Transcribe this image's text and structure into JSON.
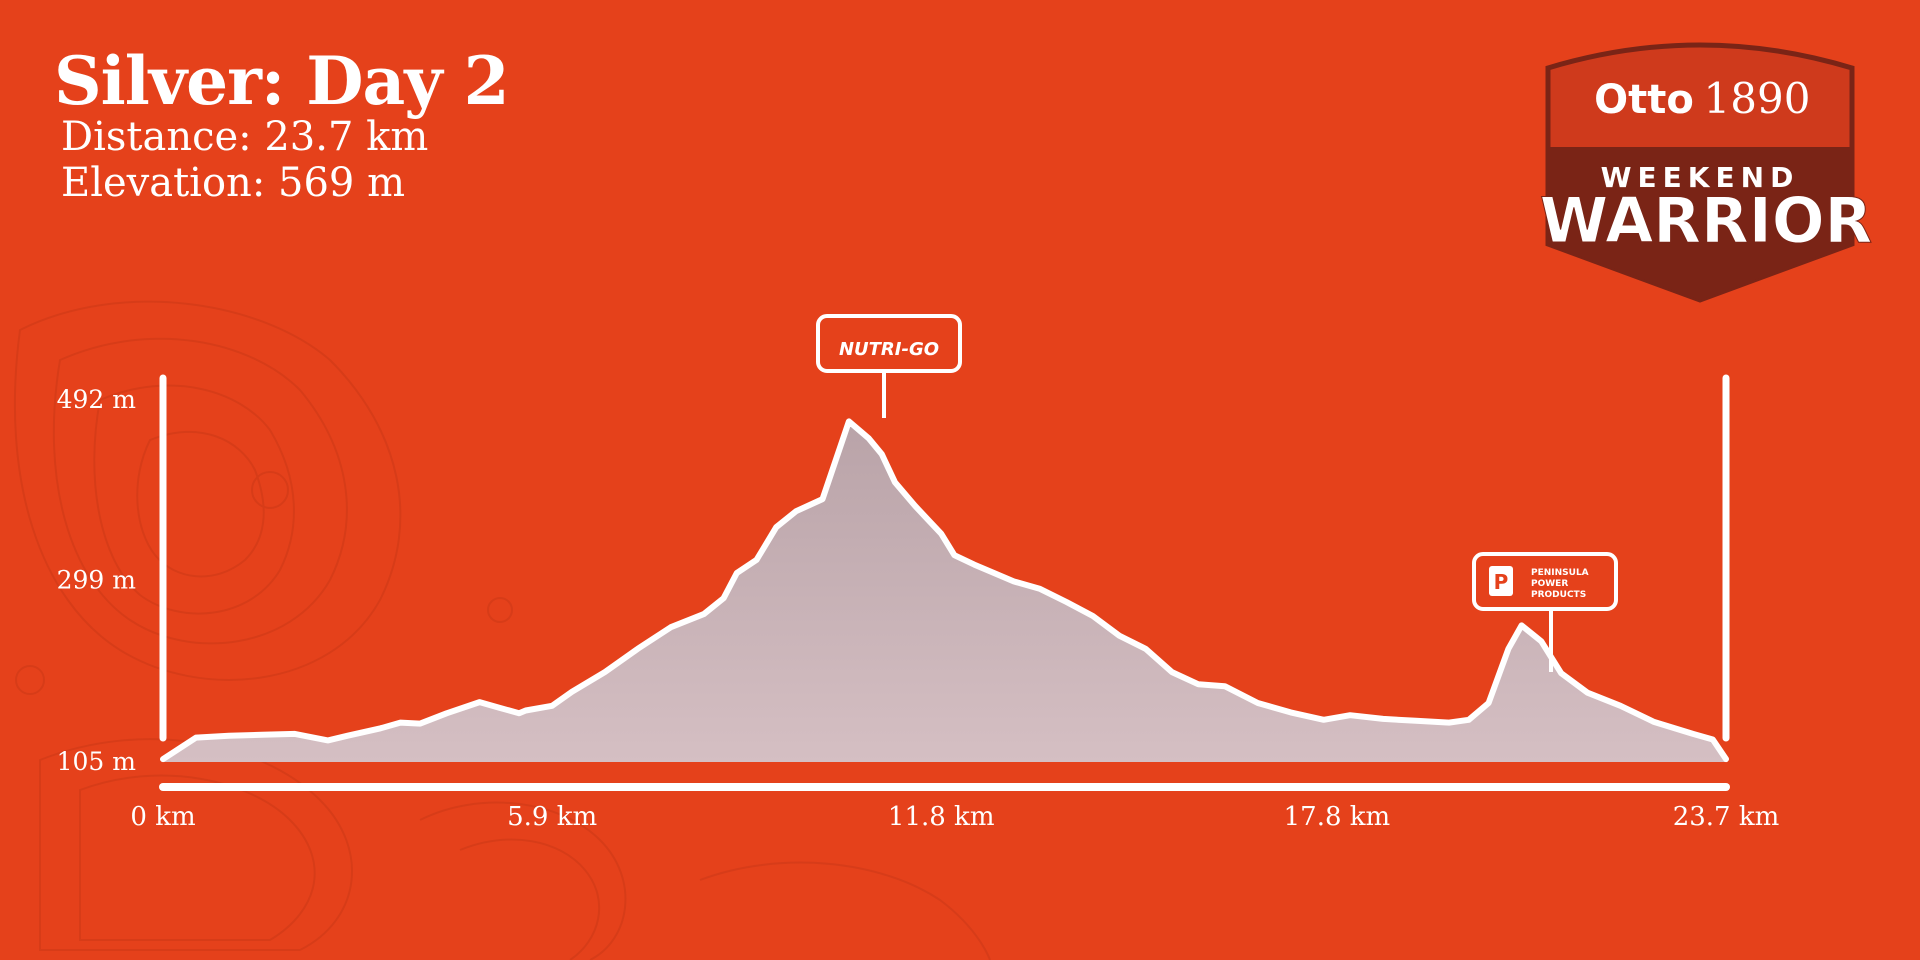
{
  "header": {
    "title": "Silver: Day 2",
    "distance": "Distance: 23.7 km",
    "elevation": "Elevation: 569 m"
  },
  "logo": {
    "brand_name": "Otto",
    "brand_year": "1890",
    "line1": "WEEKEND",
    "line2": "WARRIOR"
  },
  "sponsors": {
    "peak_sponsor": "NUTRI-GO",
    "peak2_sponsor_line1": "PENINSULA",
    "peak2_sponsor_line2": "POWER",
    "peak2_sponsor_line3": "PRODUCTS"
  },
  "colors": {
    "background": "#e5411b",
    "area_fill": "#c9b3b8",
    "line": "#ffffff",
    "logo_dark": "#7a2416",
    "logo_red": "#cf3a1c"
  },
  "chart_data": {
    "type": "area",
    "title": "",
    "xlabel": "",
    "ylabel": "",
    "x_ticks": [
      "0 km",
      "5.9 km",
      "11.8 km",
      "17.8 km",
      "23.7 km"
    ],
    "y_ticks": [
      "492 m",
      "299 m",
      "105 m"
    ],
    "x_tick_values": [
      0,
      5.9,
      11.8,
      17.8,
      23.7
    ],
    "y_tick_values": [
      492,
      299,
      105
    ],
    "xlim": [
      0,
      23.7
    ],
    "ylim": [
      105,
      492
    ],
    "grid": false,
    "series": [
      {
        "x": [
          0,
          0.5,
          1.0,
          1.5,
          2.0,
          2.5,
          2.8,
          3.3,
          3.6,
          3.9,
          4.3,
          4.8,
          5.1,
          5.4,
          5.5,
          5.9,
          6.2,
          6.7,
          7.2,
          7.7,
          8.2,
          8.5,
          8.7,
          9.0,
          9.3,
          9.6,
          10.0,
          10.4,
          10.7,
          10.9,
          11.1,
          11.4,
          11.6,
          11.8,
          12.0,
          12.3,
          12.6,
          12.9,
          13.3,
          13.7,
          14.1,
          14.5,
          14.9,
          15.3,
          15.7,
          16.1,
          16.6,
          17.1,
          17.6,
          18.0,
          18.5,
          19.0,
          19.5,
          19.8,
          20.1,
          20.4,
          20.6,
          20.9,
          21.2,
          21.6,
          22.1,
          22.6,
          23.2,
          23.5,
          23.7
        ],
        "y": [
          107,
          130,
          132,
          133,
          134,
          127,
          132,
          140,
          146,
          145,
          156,
          168,
          162,
          156,
          159,
          164,
          179,
          200,
          225,
          248,
          262,
          279,
          306,
          320,
          355,
          372,
          385,
          468,
          450,
          433,
          403,
          378,
          363,
          348,
          325,
          315,
          306,
          297,
          289,
          275,
          260,
          239,
          225,
          200,
          187,
          185,
          167,
          157,
          149,
          154,
          150,
          148,
          146,
          149,
          167,
          225,
          250,
          233,
          199,
          178,
          164,
          147,
          134,
          128,
          107
        ]
      }
    ]
  }
}
